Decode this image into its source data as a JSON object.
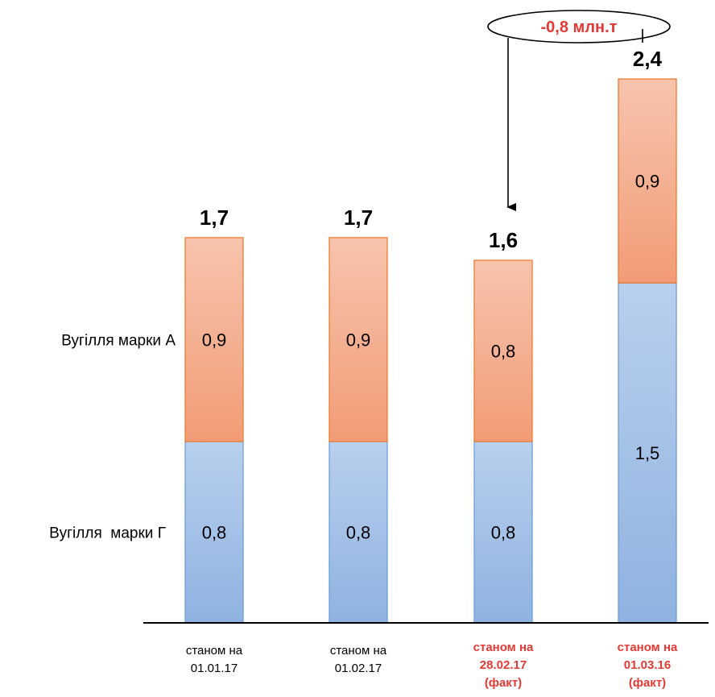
{
  "chart_data": {
    "type": "bar",
    "stacked": true,
    "categories": [
      [
        "станом на",
        "01.01.17"
      ],
      [
        "станом на",
        "01.02.17"
      ],
      [
        "станом на",
        "28.02.17",
        "(факт)"
      ],
      [
        "станом на",
        "01.03.16",
        "(факт)"
      ]
    ],
    "highlighted_categories": [
      2,
      3
    ],
    "series": [
      {
        "name": "Вугілля  марки Г",
        "values": [
          0.8,
          0.8,
          0.8,
          1.5
        ],
        "labels": [
          "0,8",
          "0,8",
          "0,8",
          "1,5"
        ],
        "color": "#9dbde6"
      },
      {
        "name": "Вугілля марки А",
        "values": [
          0.9,
          0.9,
          0.8,
          0.9
        ],
        "labels": [
          "0,9",
          "0,9",
          "0,8",
          "0,9"
        ],
        "color": "#f4a886"
      }
    ],
    "totals": [
      "1,7",
      "1,7",
      "1,6",
      "2,4"
    ],
    "annotation": {
      "text": "-0,8 млн.т",
      "from_category": 3,
      "to_category": 2,
      "color": "#e53935"
    },
    "title": "",
    "xlabel": "",
    "ylabel": "",
    "grid": false
  }
}
